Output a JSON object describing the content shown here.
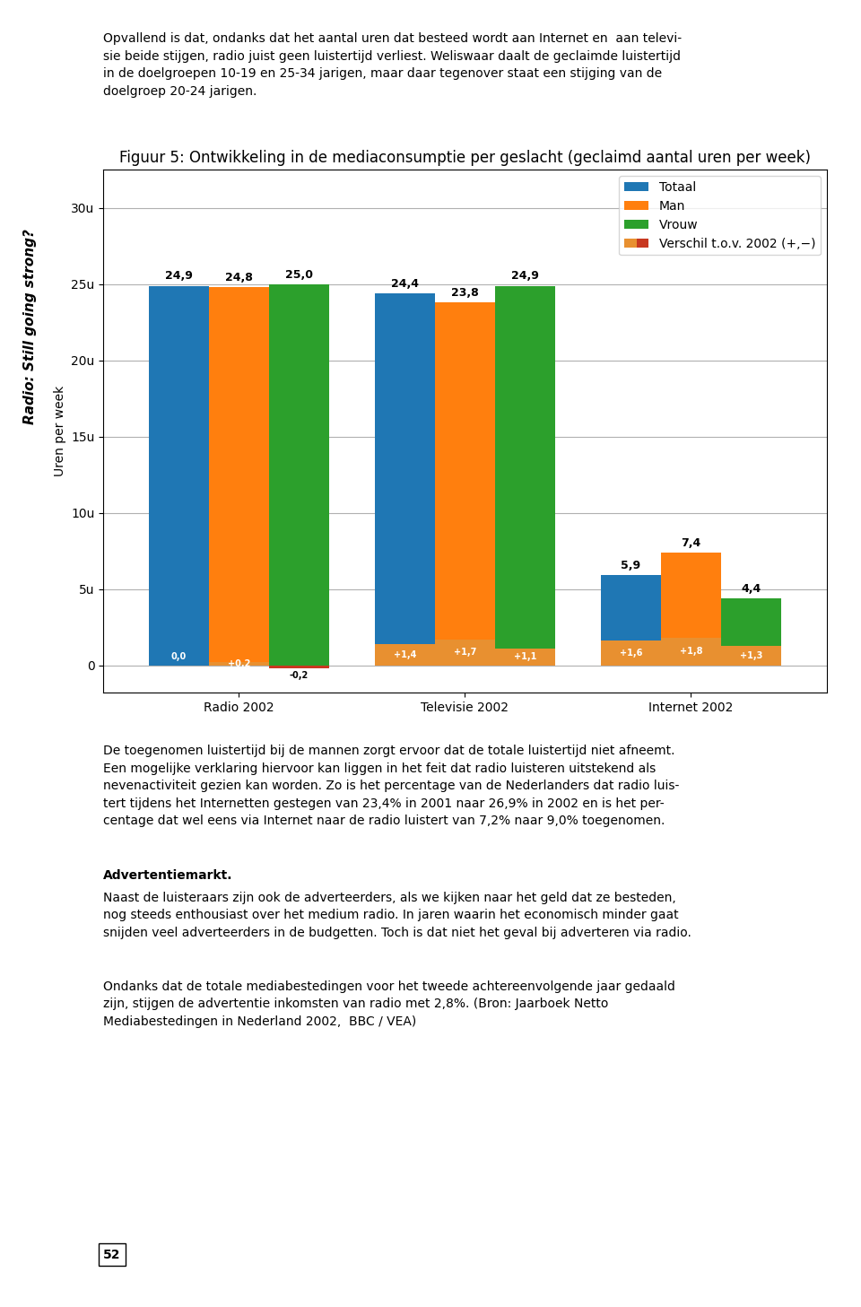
{
  "chart_data": {
    "type": "bar",
    "title": "Figuur 5: Ontwikkeling in de mediaconsumptie per geslacht (geclaimd aantal uren per week)",
    "ylabel": "Uren per week",
    "categories": [
      "Radio 2002",
      "Televisie 2002",
      "Internet 2002"
    ],
    "series": [
      {
        "name": "Totaal",
        "values": [
          24.9,
          24.4,
          5.9
        ],
        "value_labels": [
          "24,9",
          "24,4",
          "5,9"
        ],
        "change": [
          0.0,
          1.4,
          1.6
        ],
        "change_labels": [
          "0,0",
          "+1,4",
          "+1,6"
        ]
      },
      {
        "name": "Man",
        "values": [
          24.8,
          23.8,
          7.4
        ],
        "value_labels": [
          "24,8",
          "23,8",
          "7,4"
        ],
        "change": [
          0.2,
          1.7,
          1.8
        ],
        "change_labels": [
          "+0,2",
          "+1,7",
          "+1,8"
        ]
      },
      {
        "name": "Vrouw",
        "values": [
          25.0,
          24.9,
          4.4
        ],
        "value_labels": [
          "25,0",
          "24,9",
          "4,4"
        ],
        "change": [
          -0.2,
          1.1,
          1.3
        ],
        "change_labels": [
          "-0,2",
          "+1,1",
          "+1,3"
        ]
      }
    ],
    "change_name": "Verschil t.o.v. 2002 (+,−)",
    "change_colors": {
      "positive": "#e89030",
      "negative": "#c83820"
    },
    "ylim": [
      -1.8,
      32.5
    ],
    "yticks": [
      0,
      {
        "value": 5,
        "label": "5u"
      },
      {
        "value": 10,
        "label": "10u"
      },
      {
        "value": 15,
        "label": "15u"
      },
      {
        "value": 20,
        "label": "20u"
      },
      {
        "value": 25,
        "label": "25u"
      },
      {
        "value": 30,
        "label": "30u"
      }
    ],
    "grid": true,
    "legend": "upper right",
    "data_labels": true,
    "annotations": [
      "Radio: Still going strong?",
      "Opvallend is dat, ondanks dat het aantal uren dat besteed wordt aan Internet en  aan televi-\nsie beide stijgen, radio juist geen luistertijd verliest. Weliswaar daalt de geclaimde luistertijd\nin de doelgroepen 10-19 en 25-34 jarigen, maar daar tegenover staat een stijging van de\ndoelgroep 20-24 jarigen.",
      "De toegenomen luistertijd bij de mannen zorgt ervoor dat de totale luistertijd niet afneemt.\nEen mogelijke verklaring hiervoor kan liggen in het feit dat radio luisteren uitstekend als\nnevenactiviteit gezien kan worden. Zo is het percentage van de Nederlanders dat radio luis-\ntert tijdens het Internetten gestegen van 23,4% in 2001 naar 26,9% in 2002 en is het per-\ncentage dat wel eens via Internet naar de radio luistert van 7,2% naar 9,0% toegenomen.",
      "Advertentiemarkt.",
      "Naast de luisteraars zijn ook de adverteerders, als we kijken naar het geld dat ze besteden,\nnog steeds enthousiast over het medium radio. In jaren waarin het economisch minder gaat\nsnijden veel adverteerders in de budgetten. Toch is dat niet het geval bij adverteren via radio.",
      "Ondanks dat de totale mediabestedingen voor het tweede achtereenvolgende jaar gedaald\nzijn, stijgen de advertentie inkomsten van radio met 2,8%. (Bron: Jaarboek Netto\nMediabestedingen in Nederland 2002,  BBC / VEA)",
      "52"
    ]
  }
}
